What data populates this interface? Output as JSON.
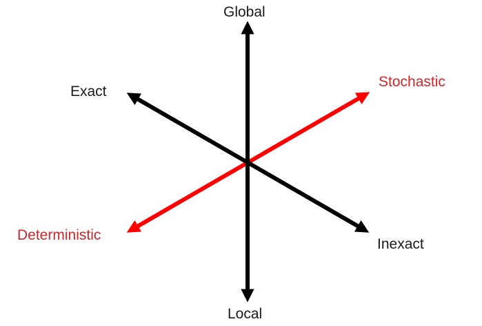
{
  "colors": {
    "black_axis": "#000000",
    "red_axis": "#ff0000",
    "black_text": "#1a1a1a",
    "red_text": "#d0262b"
  },
  "axes": [
    {
      "id": "vertical",
      "start_label": "Local",
      "end_label": "Global",
      "color": "black"
    },
    {
      "id": "exactness",
      "start_label": "Inexact",
      "end_label": "Exact",
      "color": "black"
    },
    {
      "id": "randomness",
      "start_label": "Deterministic",
      "end_label": "Stochastic",
      "color": "red"
    }
  ],
  "labels": {
    "global": "Global",
    "local": "Local",
    "exact": "Exact",
    "inexact": "Inexact",
    "stochastic": "Stochastic",
    "deterministic": "Deterministic"
  }
}
